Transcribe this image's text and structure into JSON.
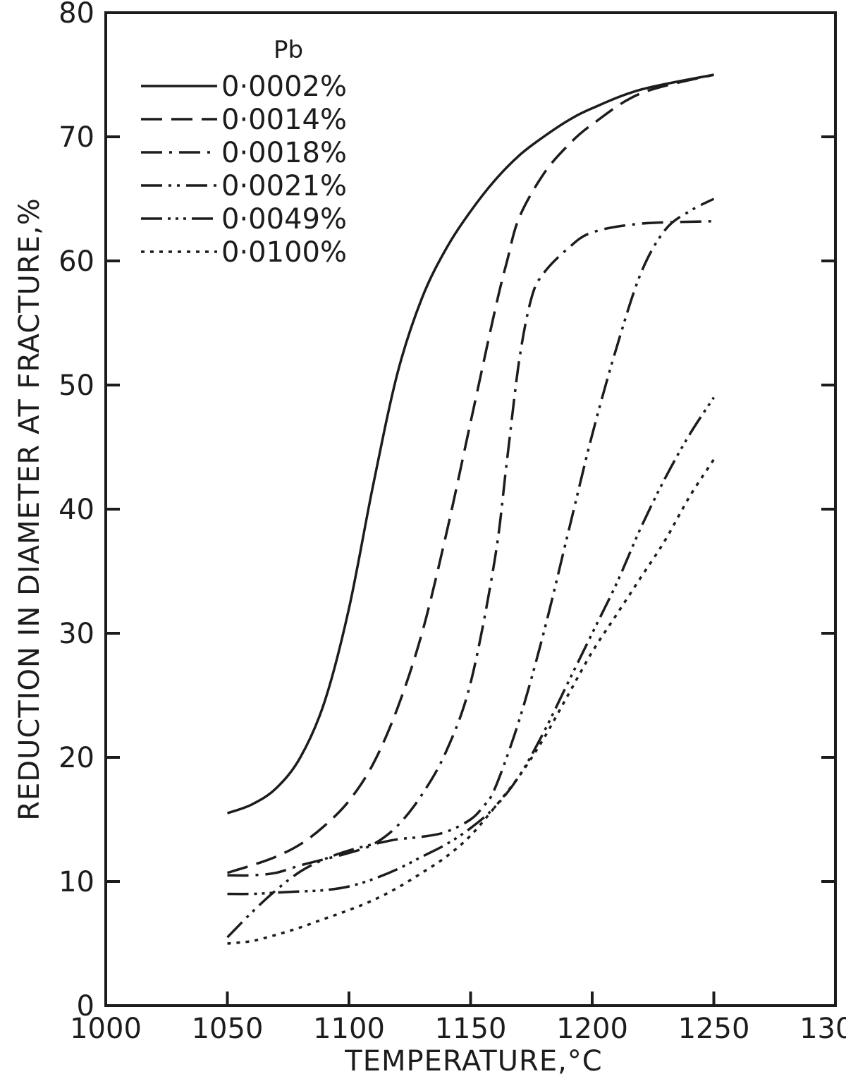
{
  "chart_data": {
    "type": "line",
    "title": "",
    "xlabel": "TEMPERATURE,°C",
    "ylabel": "REDUCTION IN DIAMETER AT FRACTURE,%",
    "xlim": [
      1000,
      1300
    ],
    "ylim": [
      0,
      80
    ],
    "xticks": [
      1000,
      1050,
      1100,
      1150,
      1200,
      1250,
      1300
    ],
    "yticks": [
      0,
      10,
      20,
      30,
      40,
      50,
      60,
      70,
      80
    ],
    "grid": false,
    "legend": {
      "title": "Pb",
      "placement": "top-left"
    },
    "line_color": "#1c1c1c",
    "series": [
      {
        "name": "0·0002%",
        "dash": "solid",
        "x": [
          1050,
          1060,
          1070,
          1080,
          1090,
          1100,
          1110,
          1120,
          1130,
          1140,
          1150,
          1160,
          1170,
          1180,
          1190,
          1200,
          1220,
          1250
        ],
        "y": [
          15.5,
          16.2,
          17.5,
          20,
          24.5,
          32,
          42,
          51,
          57,
          61,
          64,
          66.5,
          68.5,
          70,
          71.3,
          72.3,
          73.8,
          75
        ]
      },
      {
        "name": "0·0014%",
        "dash": "dash",
        "x": [
          1050,
          1060,
          1070,
          1080,
          1090,
          1100,
          1110,
          1120,
          1130,
          1140,
          1150,
          1160,
          1165,
          1170,
          1180,
          1190,
          1200,
          1220,
          1250
        ],
        "y": [
          10.7,
          11.3,
          12,
          13,
          14.5,
          16.5,
          19.5,
          24,
          30,
          38,
          47,
          56,
          60,
          63.5,
          67,
          69.3,
          71,
          73.5,
          75
        ]
      },
      {
        "name": "0·0018%",
        "dash": "dashdot",
        "x": [
          1050,
          1060,
          1070,
          1080,
          1090,
          1100,
          1110,
          1120,
          1130,
          1140,
          1150,
          1160,
          1165,
          1170,
          1175,
          1180,
          1190,
          1200,
          1220,
          1250
        ],
        "y": [
          10.5,
          10.5,
          10.7,
          11.3,
          11.8,
          12.3,
          13,
          14.5,
          17,
          20.5,
          26,
          36,
          44,
          52,
          57,
          59,
          61,
          62.3,
          63,
          63.2
        ]
      },
      {
        "name": "0·0021%",
        "dash": "dashdotdot",
        "x": [
          1050,
          1060,
          1070,
          1080,
          1090,
          1100,
          1110,
          1120,
          1130,
          1140,
          1150,
          1155,
          1160,
          1170,
          1180,
          1190,
          1200,
          1210,
          1220,
          1230,
          1240,
          1250
        ],
        "y": [
          5.5,
          7.5,
          9.3,
          10.8,
          11.8,
          12.5,
          13,
          13.4,
          13.6,
          14,
          15,
          16,
          17.5,
          23,
          30,
          38,
          46,
          53,
          59,
          62.5,
          64,
          65
        ]
      },
      {
        "name": "0·0049%",
        "dash": "dashdotdotdot",
        "x": [
          1050,
          1060,
          1070,
          1080,
          1090,
          1100,
          1110,
          1120,
          1130,
          1140,
          1150,
          1160,
          1170,
          1180,
          1190,
          1200,
          1210,
          1220,
          1230,
          1240,
          1250
        ],
        "y": [
          9,
          9,
          9.1,
          9.2,
          9.3,
          9.6,
          10.2,
          11,
          12,
          13,
          14.3,
          16,
          18.5,
          22,
          26,
          30,
          34,
          38.5,
          42.5,
          46,
          49
        ]
      },
      {
        "name": "0·0100%",
        "dash": "dotted",
        "x": [
          1050,
          1060,
          1070,
          1080,
          1090,
          1100,
          1110,
          1120,
          1130,
          1140,
          1150,
          1160,
          1170,
          1180,
          1190,
          1200,
          1210,
          1220,
          1230,
          1240,
          1250
        ],
        "y": [
          5,
          5.2,
          5.7,
          6.3,
          7,
          7.7,
          8.5,
          9.5,
          10.7,
          12,
          13.7,
          16,
          18.5,
          21.5,
          25,
          28.5,
          31.5,
          34.5,
          37.5,
          41,
          44
        ]
      }
    ]
  }
}
